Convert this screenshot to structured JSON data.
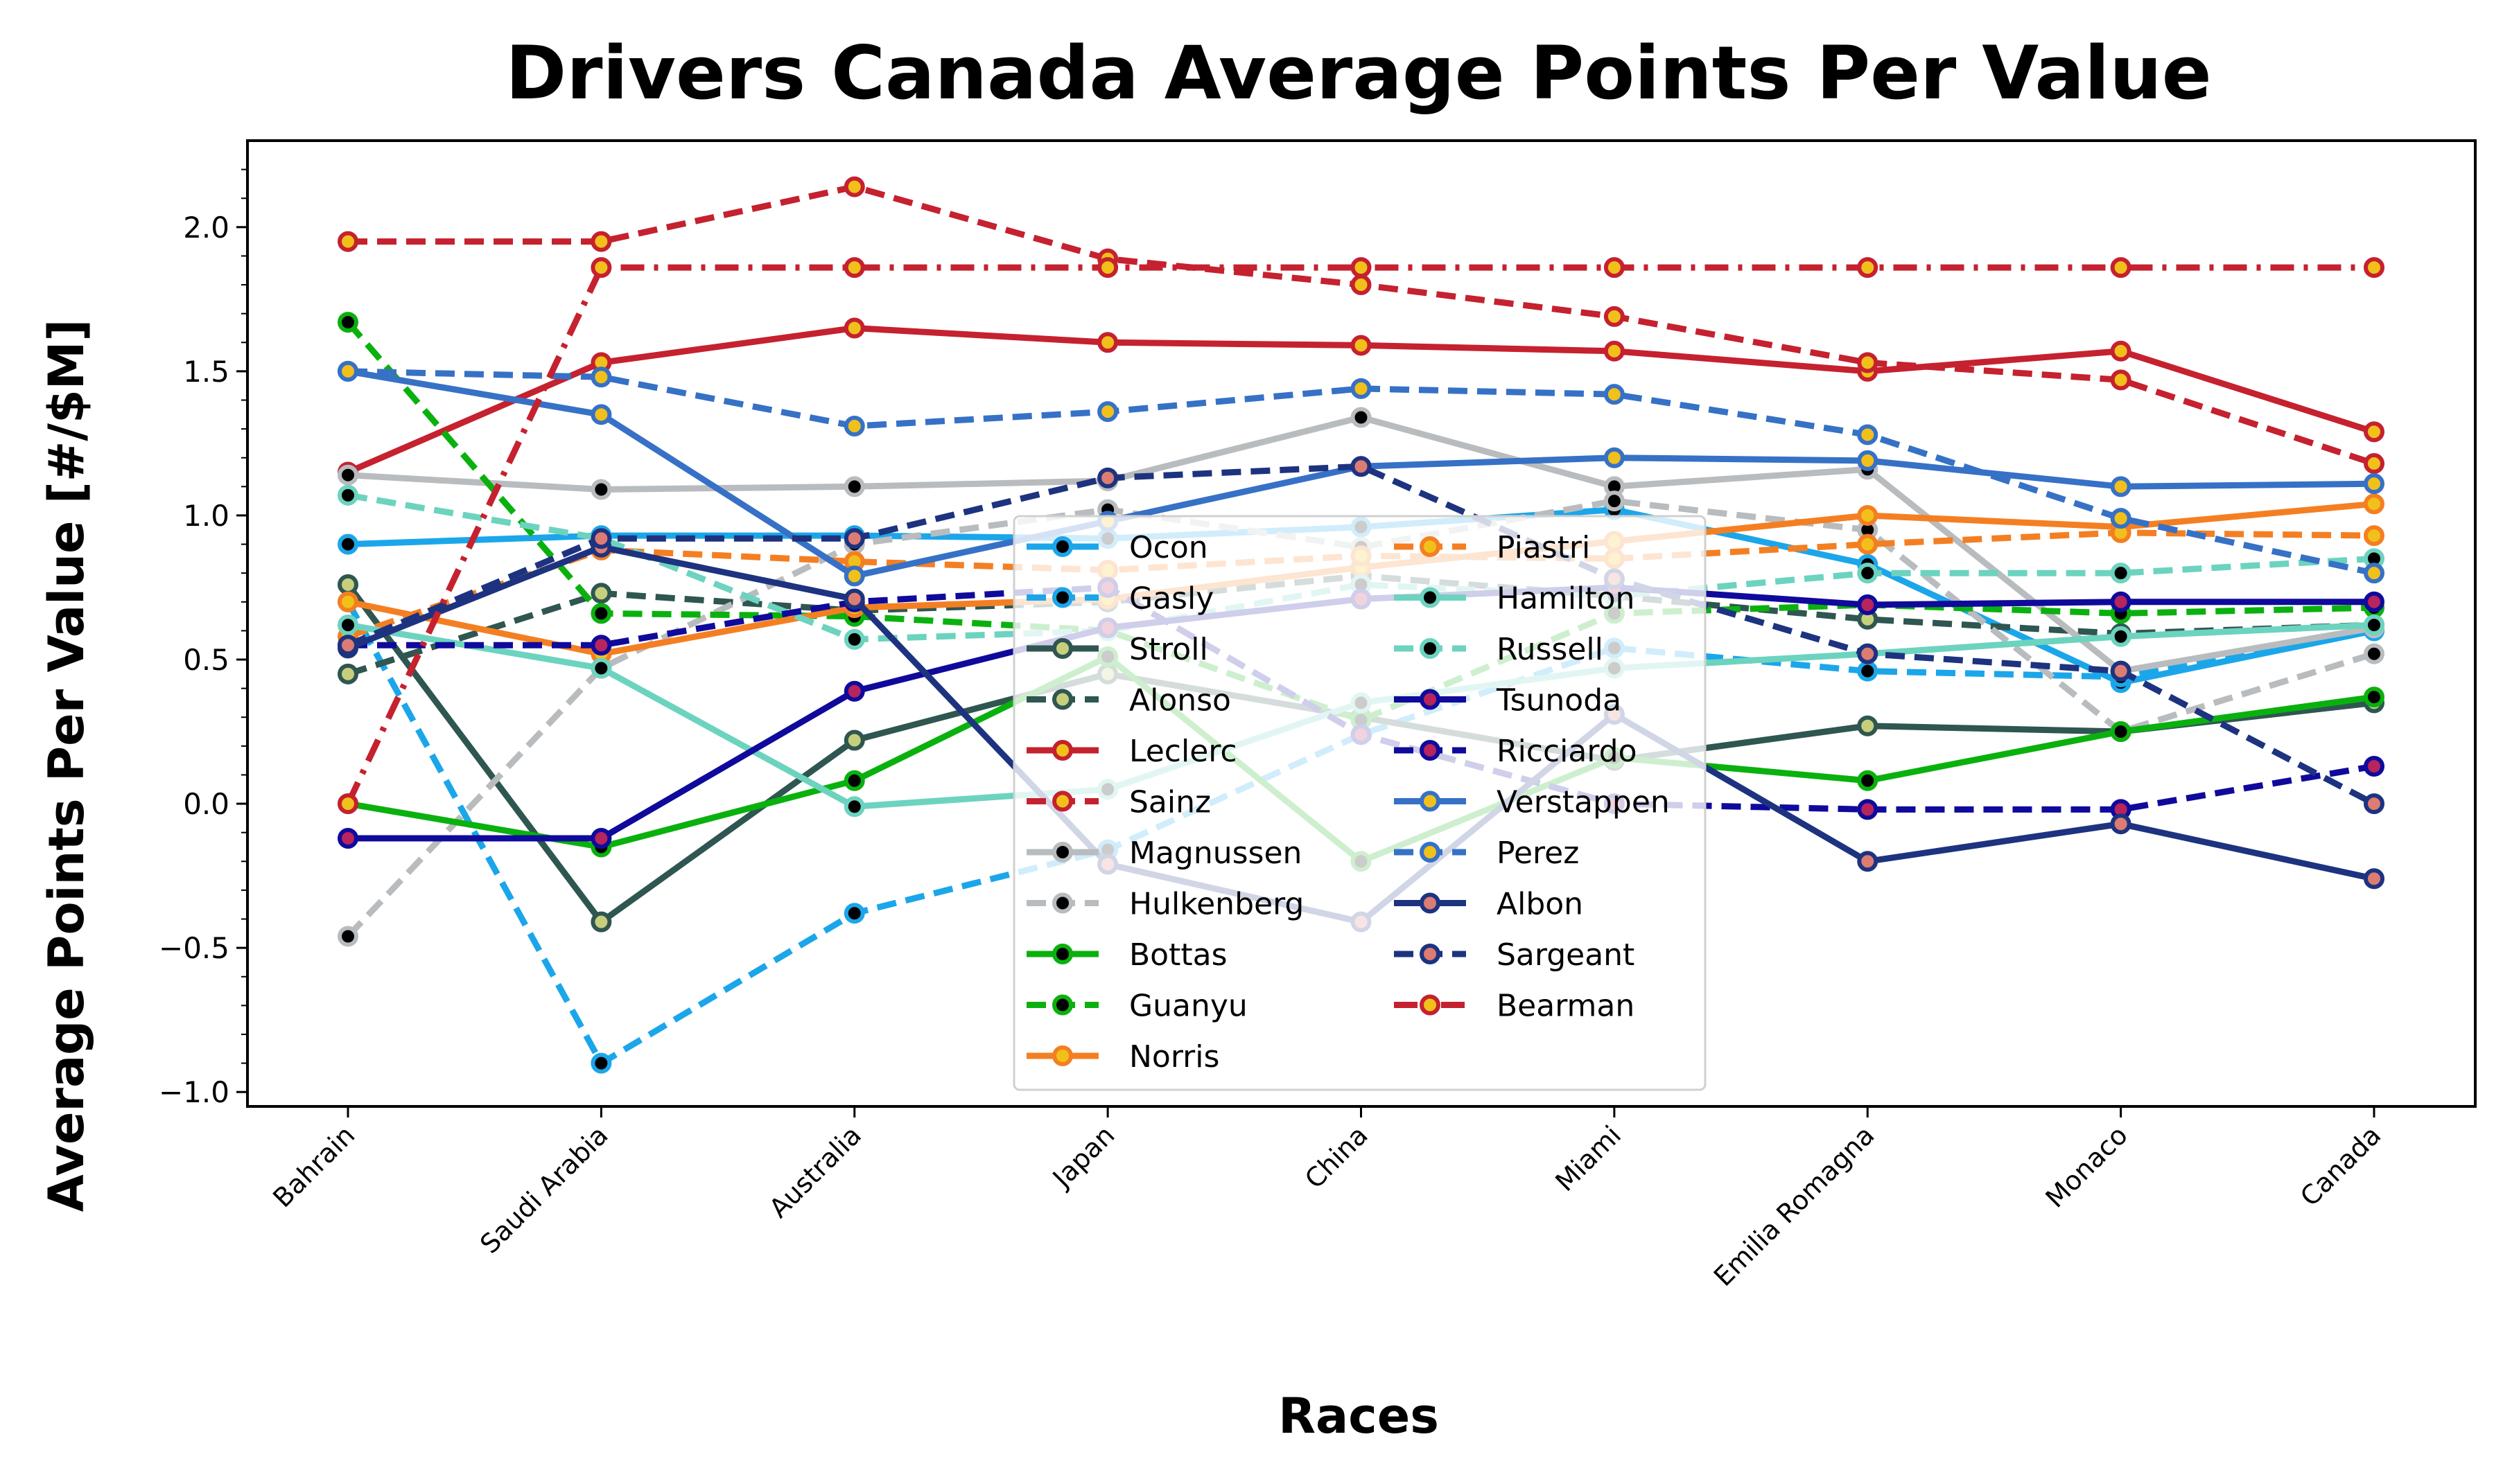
{
  "chart_data": {
    "type": "line",
    "title": "Drivers Canada Average Points Per Value",
    "xlabel": "Races",
    "ylabel": "Average Points Per Value [#/$M]",
    "categories": [
      "Bahrain",
      "Saudi Arabia",
      "Australia",
      "Japan",
      "China",
      "Miami",
      "Emilia Romagna",
      "Monaco",
      "Canada"
    ],
    "ylim": [
      -1.05,
      2.3
    ],
    "yticks": [
      -1.0,
      -0.5,
      0.0,
      0.5,
      1.0,
      1.5,
      2.0
    ],
    "ytick_labels": [
      "−1.0",
      "−0.5",
      "0.0",
      "0.5",
      "1.0",
      "1.5",
      "2.0"
    ],
    "grid": false,
    "legend_position": "lower-center",
    "series": [
      {
        "name": "Ocon",
        "color": "#1ba6ea",
        "marker_fill": "#000000",
        "dash": "solid",
        "values": [
          0.9,
          0.93,
          0.93,
          0.92,
          0.96,
          1.02,
          0.83,
          0.42,
          0.6
        ]
      },
      {
        "name": "Gasly",
        "color": "#1ba6ea",
        "marker_fill": "#000000",
        "dash": "dashed",
        "values": [
          0.7,
          -0.9,
          -0.38,
          -0.16,
          0.24,
          0.54,
          0.46,
          0.44,
          0.6
        ]
      },
      {
        "name": "Stroll",
        "color": "#2f5651",
        "marker_fill": "#c8cf7c",
        "dash": "solid",
        "values": [
          0.76,
          -0.41,
          0.22,
          0.45,
          0.3,
          0.15,
          0.27,
          0.25,
          0.35
        ]
      },
      {
        "name": "Alonso",
        "color": "#2f5651",
        "marker_fill": "#c8cf7c",
        "dash": "dashed",
        "values": [
          0.45,
          0.73,
          0.67,
          0.7,
          0.79,
          0.72,
          0.64,
          0.59,
          0.62
        ]
      },
      {
        "name": "Leclerc",
        "color": "#c5212f",
        "marker_fill": "#f2c01a",
        "dash": "solid",
        "values": [
          1.15,
          1.53,
          1.65,
          1.6,
          1.59,
          1.57,
          1.5,
          1.57,
          1.29
        ]
      },
      {
        "name": "Sainz",
        "color": "#c5212f",
        "marker_fill": "#f2c01a",
        "dash": "dashed",
        "values": [
          1.95,
          1.95,
          2.14,
          1.89,
          1.8,
          1.69,
          1.53,
          1.47,
          1.18
        ]
      },
      {
        "name": "Magnussen",
        "color": "#b9bcbe",
        "marker_fill": "#000000",
        "dash": "solid",
        "values": [
          1.14,
          1.09,
          1.1,
          1.12,
          1.34,
          1.1,
          1.16,
          0.46,
          0.61
        ]
      },
      {
        "name": "Hulkenberg",
        "color": "#b9bcbe",
        "marker_fill": "#000000",
        "dash": "dashed",
        "values": [
          -0.46,
          0.47,
          0.9,
          1.02,
          0.89,
          1.05,
          0.95,
          0.25,
          0.52
        ]
      },
      {
        "name": "Bottas",
        "color": "#0ab10e",
        "marker_fill": "#000000",
        "dash": "solid",
        "values": [
          0.0,
          -0.15,
          0.08,
          0.51,
          -0.2,
          0.16,
          0.08,
          0.25,
          0.37
        ]
      },
      {
        "name": "Guanyu",
        "color": "#0ab10e",
        "marker_fill": "#000000",
        "dash": "dashed",
        "values": [
          1.67,
          0.66,
          0.65,
          0.6,
          0.29,
          0.66,
          0.69,
          0.66,
          0.68
        ]
      },
      {
        "name": "Norris",
        "color": "#f47f22",
        "marker_fill": "#f2c01a",
        "dash": "solid",
        "values": [
          0.7,
          0.52,
          0.68,
          0.71,
          0.82,
          0.91,
          1.0,
          0.96,
          1.04
        ]
      },
      {
        "name": "Piastri",
        "color": "#f47f22",
        "marker_fill": "#f2c01a",
        "dash": "dashed",
        "values": [
          0.58,
          0.88,
          0.84,
          0.81,
          0.86,
          0.85,
          0.9,
          0.94,
          0.93
        ]
      },
      {
        "name": "Hamilton",
        "color": "#6cd3bf",
        "marker_fill": "#000000",
        "dash": "solid",
        "values": [
          0.62,
          0.47,
          -0.01,
          0.05,
          0.35,
          0.47,
          0.52,
          0.58,
          0.62
        ]
      },
      {
        "name": "Russell",
        "color": "#6cd3bf",
        "marker_fill": "#000000",
        "dash": "dashed",
        "values": [
          1.07,
          0.92,
          0.57,
          0.6,
          0.76,
          0.72,
          0.8,
          0.8,
          0.85
        ]
      },
      {
        "name": "Tsunoda",
        "color": "#0f0a9c",
        "marker_fill": "#b8245c",
        "dash": "solid",
        "values": [
          -0.12,
          -0.12,
          0.39,
          0.61,
          0.71,
          0.75,
          0.69,
          0.7,
          0.7
        ]
      },
      {
        "name": "Ricciardo",
        "color": "#0f0a9c",
        "marker_fill": "#b8245c",
        "dash": "dashed",
        "values": [
          0.55,
          0.55,
          0.7,
          0.75,
          0.24,
          0.0,
          -0.02,
          -0.02,
          0.13
        ]
      },
      {
        "name": "Verstappen",
        "color": "#3671c6",
        "marker_fill": "#f2c01a",
        "dash": "solid",
        "values": [
          1.5,
          1.35,
          0.79,
          0.98,
          1.17,
          1.2,
          1.19,
          1.1,
          1.11
        ]
      },
      {
        "name": "Perez",
        "color": "#3671c6",
        "marker_fill": "#f2c01a",
        "dash": "dashed",
        "values": [
          1.5,
          1.48,
          1.31,
          1.36,
          1.44,
          1.42,
          1.28,
          0.99,
          0.8
        ]
      },
      {
        "name": "Albon",
        "color": "#1d3380",
        "marker_fill": "#dc7c72",
        "dash": "solid",
        "values": [
          0.54,
          0.89,
          0.71,
          -0.21,
          -0.41,
          0.31,
          -0.2,
          -0.07,
          -0.26
        ]
      },
      {
        "name": "Sargeant",
        "color": "#1d3380",
        "marker_fill": "#dc7c72",
        "dash": "dashed",
        "values": [
          0.55,
          0.92,
          0.92,
          1.13,
          1.17,
          0.78,
          0.52,
          0.46,
          0.0
        ]
      },
      {
        "name": "Bearman",
        "color": "#c5212f",
        "marker_fill": "#f2c01a",
        "dash": "dashdot",
        "values": [
          0.0,
          1.86,
          1.86,
          1.86,
          1.86,
          1.86,
          1.86,
          1.86,
          1.86
        ]
      }
    ]
  }
}
